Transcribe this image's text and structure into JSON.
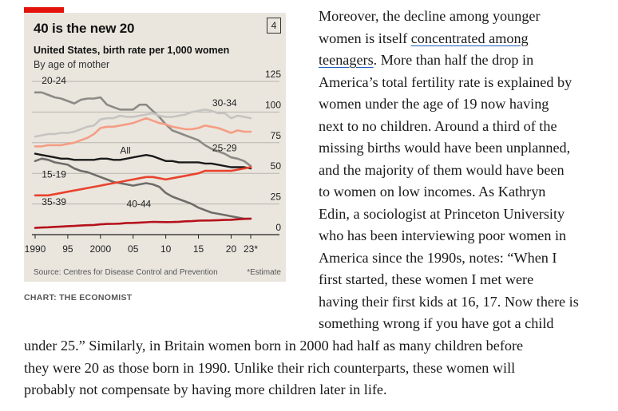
{
  "chart": {
    "title": "40 is the new 20",
    "badge": "4",
    "subtitle": "United States, birth rate per 1,000 women",
    "subtitle2": "By age of mother",
    "source": "Source: Centres for Disease Control and Prevention",
    "note": "*Estimate",
    "credit": "CHART: THE ECONOMIST"
  },
  "chart_data": {
    "type": "line",
    "xlabel": "",
    "ylabel": "",
    "xlim": [
      1990,
      2023
    ],
    "ylim": [
      0,
      125
    ],
    "yticks": [
      0,
      25,
      50,
      75,
      100,
      125
    ],
    "xtick_labels": [
      "1990",
      "95",
      "2000",
      "05",
      "10",
      "15",
      "20",
      "23*"
    ],
    "xtick_values": [
      1990,
      1995,
      2000,
      2005,
      2010,
      2015,
      2020,
      2023
    ],
    "grid": "horizontal",
    "x": [
      1990,
      1991,
      1992,
      1993,
      1994,
      1995,
      1996,
      1997,
      1998,
      1999,
      2000,
      2001,
      2002,
      2003,
      2004,
      2005,
      2006,
      2007,
      2008,
      2009,
      2010,
      2011,
      2012,
      2013,
      2014,
      2015,
      2016,
      2017,
      2018,
      2019,
      2020,
      2021,
      2022,
      2023
    ],
    "series": [
      {
        "name": "20-24",
        "color": "#8c8a86",
        "values": [
          116,
          116,
          114,
          112,
          111,
          109,
          107,
          110,
          111,
          111,
          112,
          106,
          104,
          102,
          102,
          102,
          106,
          106,
          101,
          96,
          90,
          85,
          83,
          81,
          79,
          77,
          73,
          70,
          68,
          66,
          63,
          62,
          60,
          56
        ]
      },
      {
        "name": "30-34",
        "color": "#c6c4c0",
        "values": [
          80,
          81,
          82,
          82,
          83,
          83,
          84,
          86,
          88,
          89,
          94,
          95,
          95,
          97,
          96,
          96,
          97,
          98,
          99,
          97,
          96,
          96,
          97,
          98,
          100,
          101,
          102,
          101,
          99,
          99,
          95,
          97,
          96,
          95
        ]
      },
      {
        "name": "25-29",
        "color": "#f59d84",
        "values": [
          72,
          72,
          73,
          73,
          73,
          74,
          75,
          77,
          79,
          82,
          87,
          88,
          88,
          89,
          90,
          91,
          93,
          95,
          93,
          91,
          90,
          88,
          87,
          86,
          86,
          87,
          89,
          88,
          87,
          85,
          83,
          85,
          84,
          84
        ]
      },
      {
        "name": "All",
        "color": "#1a1a1a",
        "values": [
          66,
          65,
          64,
          63,
          62,
          62,
          61,
          61,
          61,
          61,
          62,
          62,
          61,
          61,
          62,
          63,
          64,
          65,
          64,
          62,
          60,
          60,
          59,
          59,
          59,
          59,
          58,
          58,
          57,
          56,
          55,
          55,
          55,
          54
        ]
      },
      {
        "name": "15-19",
        "color": "#6f6d6a",
        "values": [
          60,
          62,
          61,
          59,
          58,
          57,
          54,
          52,
          51,
          49,
          47,
          45,
          43,
          42,
          41,
          40,
          41,
          42,
          41,
          39,
          34,
          31,
          29,
          27,
          25,
          22,
          20,
          18,
          17,
          16,
          15,
          14,
          13,
          13
        ]
      },
      {
        "name": "35-39",
        "color": "#e8432e",
        "values": [
          32,
          32,
          32,
          33,
          34,
          35,
          36,
          37,
          38,
          39,
          40,
          41,
          42,
          43,
          44,
          45,
          46,
          47,
          47,
          46,
          45,
          46,
          47,
          48,
          49,
          50,
          52,
          52,
          52,
          52,
          52,
          53,
          54,
          55
        ]
      },
      {
        "name": "40-44",
        "color": "#b5121b",
        "values": [
          5.5,
          5.8,
          6.0,
          6.3,
          6.6,
          6.9,
          7.1,
          7.4,
          7.7,
          7.9,
          8.4,
          8.7,
          8.8,
          9.0,
          9.5,
          9.6,
          9.8,
          10.1,
          10.4,
          10.3,
          10.2,
          10.3,
          10.5,
          10.9,
          11.0,
          11.4,
          11.5,
          11.6,
          11.8,
          12.0,
          12.1,
          12.5,
          12.8,
          13.0
        ]
      }
    ]
  },
  "article": {
    "line1": "Moreover, the decline among younger",
    "line2a": "women is itself ",
    "line2link": "concentrated among",
    "line3link": "teenagers",
    "line3b": ". More than half the drop in",
    "line4": "America’s total fertility rate is explained by",
    "line5": "women under the age of 19 now having",
    "line6": "next to no children. Around a third of the",
    "line7": "missing births would have been unplanned,",
    "line8": "and the majority of them would have been",
    "line9": "to women on low incomes. As Kathryn",
    "line10": "Edin, a sociologist at Princeton University",
    "line11": "who has been interviewing poor women in",
    "line12": "America since the 1990s, notes: “When I",
    "line13": "first started, these women I met were",
    "line14": "having their first kids at 16, 17. Now there is",
    "line15": "something wrong if you have got a child",
    "line16": "under 25.” Similarly, in Britain women born in 2000 had half as many children before",
    "line17": "they were 20 as those born in 1990. Unlike their rich counterparts, these women will",
    "line18": "probably not compensate by having more children later in life."
  }
}
